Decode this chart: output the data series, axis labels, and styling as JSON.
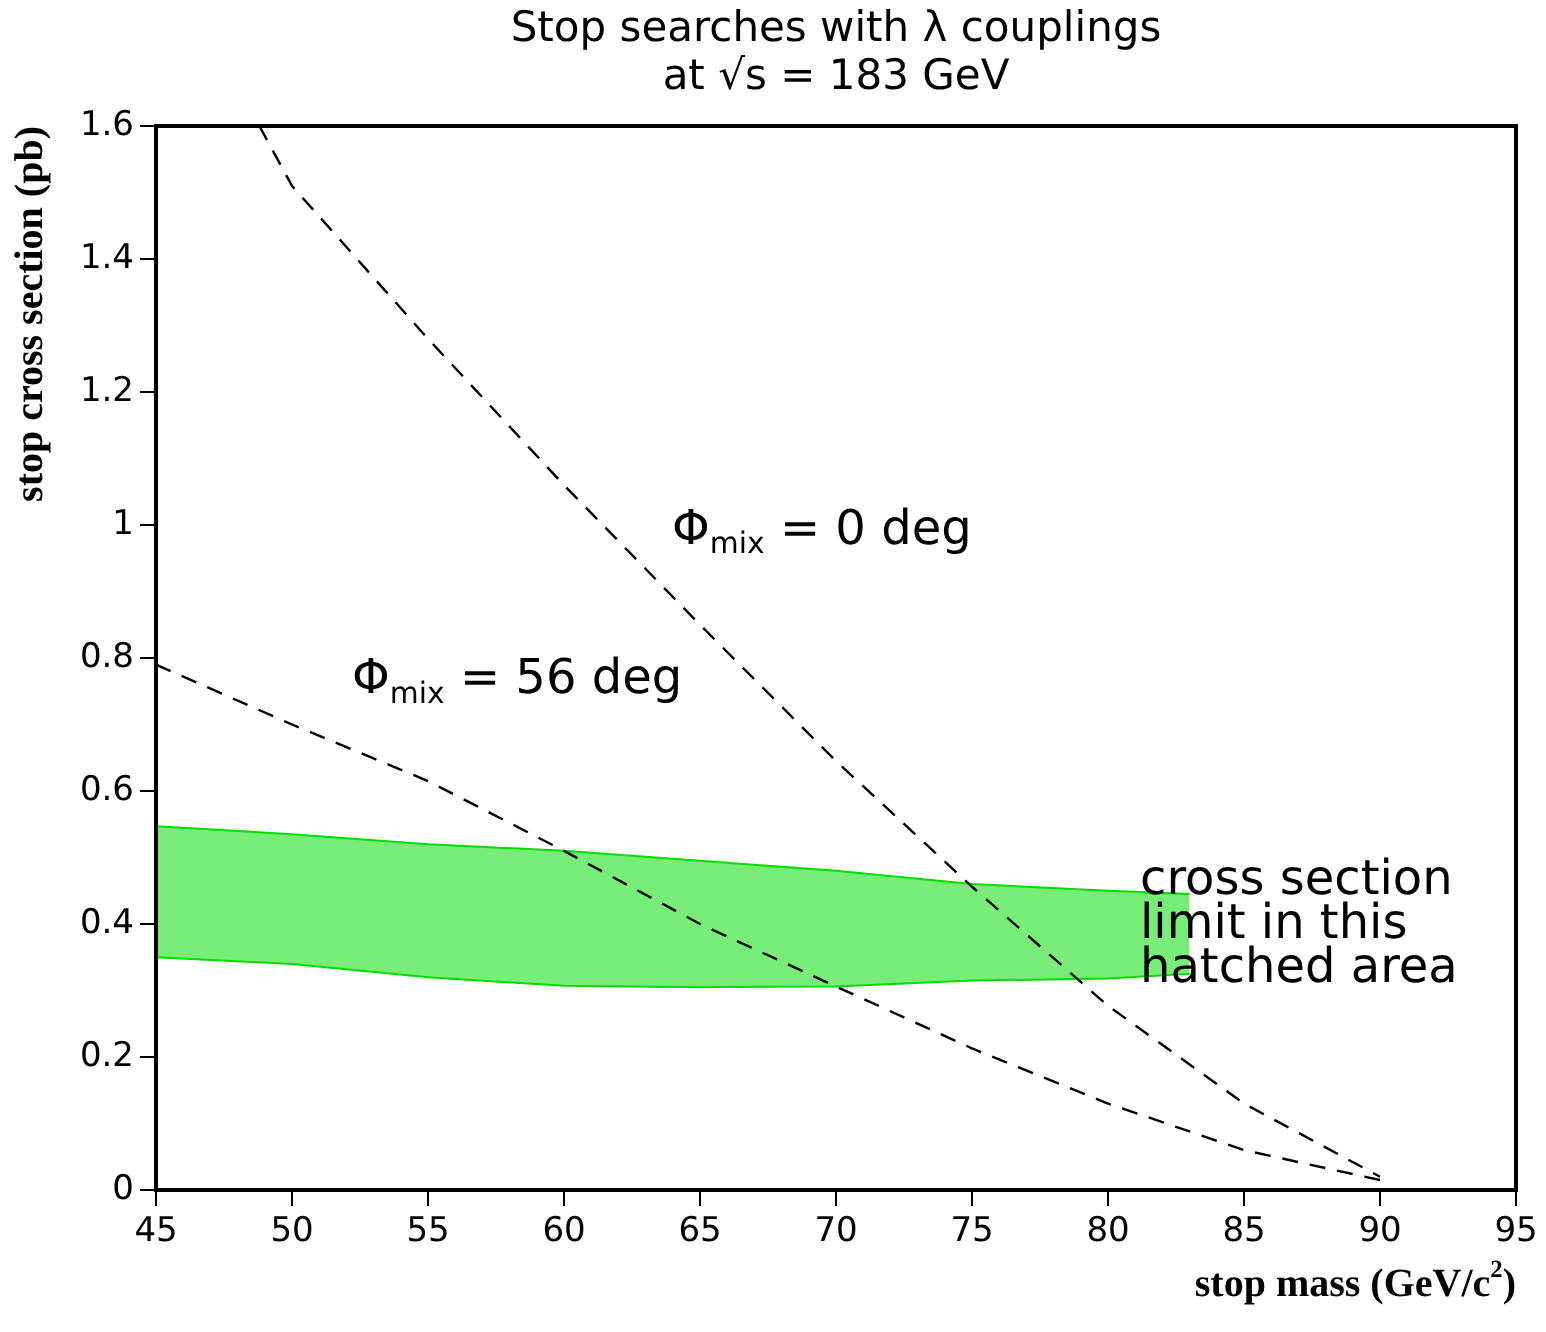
{
  "chart_data": {
    "type": "line",
    "title": "Stop searches with λ couplings",
    "subtitle": "at √s = 183 GeV",
    "xlabel": "stop mass (GeV/c$^{2}$)",
    "ylabel": "stop cross section (pb)",
    "xlim": [
      45,
      95
    ],
    "xticks": [
      45,
      50,
      55,
      60,
      65,
      70,
      75,
      80,
      85,
      90,
      95
    ],
    "ylim": [
      0,
      1.6
    ],
    "yticks": [
      0,
      0.2,
      0.4,
      0.6,
      0.8,
      1,
      1.2,
      1.4,
      1.6
    ],
    "grid": false,
    "legend": false,
    "marker": "none",
    "series": [
      {
        "name": "Φ$_{mix}$ = 0 deg",
        "color": "#000000",
        "line_style": "dashed",
        "x": [
          48.8,
          50,
          55,
          60,
          65,
          70,
          75,
          80,
          85,
          90
        ],
        "values": [
          1.6,
          1.51,
          1.28,
          1.06,
          0.85,
          0.645,
          0.456,
          0.277,
          0.13,
          0.02
        ]
      },
      {
        "name": "Φ$_{mix}$ = 56 deg",
        "color": "#000000",
        "line_style": "dashed",
        "x": [
          45,
          50,
          55,
          60,
          65,
          70,
          75,
          80,
          85,
          90
        ],
        "values": [
          0.79,
          0.7,
          0.615,
          0.51,
          0.4,
          0.306,
          0.213,
          0.13,
          0.06,
          0.015
        ]
      },
      {
        "type": "area",
        "color": "#00dd00",
        "x": [
          45,
          50,
          55,
          60,
          65,
          70,
          75,
          80,
          83
        ],
        "values": [
          0.547,
          0.535,
          0.52,
          0.51,
          0.495,
          0.48,
          0.46,
          0.45,
          0.445
        ]
      },
      {
        "type": "line",
        "color": "#00dd00",
        "line_style": "solid",
        "x": [
          45,
          50,
          55,
          60,
          65,
          70,
          75,
          80,
          83
        ],
        "values": [
          0.35,
          0.34,
          0.32,
          0.307,
          0.305,
          0.306,
          0.315,
          0.318,
          0.325
        ]
      }
    ],
    "annotations": [
      "cross section\nlimit in this\nhatched area"
    ]
  }
}
